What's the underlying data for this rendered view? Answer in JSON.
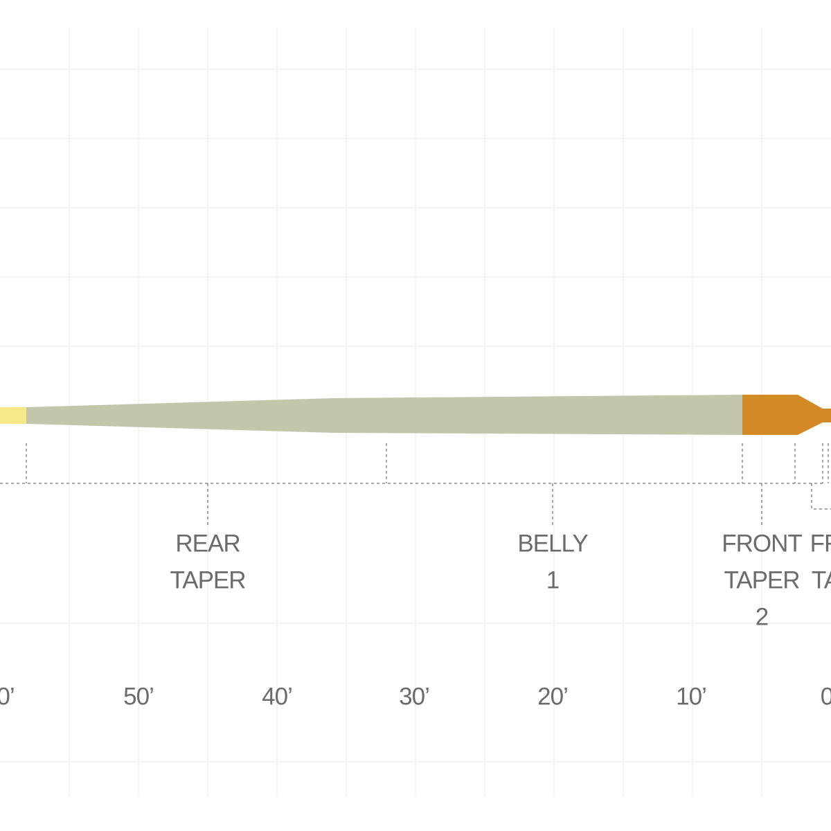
{
  "segments": [
    {
      "lines": [
        "REAR",
        "TAPER"
      ]
    },
    {
      "lines": [
        "BELLY",
        "1"
      ]
    },
    {
      "lines": [
        "FRONT",
        "TAPER",
        "2"
      ]
    },
    {
      "lines": [
        "FR",
        "TA"
      ]
    }
  ],
  "distance_labels": [
    "0’",
    "50’",
    "40’",
    "30’",
    "20’",
    "10’",
    "0"
  ]
}
